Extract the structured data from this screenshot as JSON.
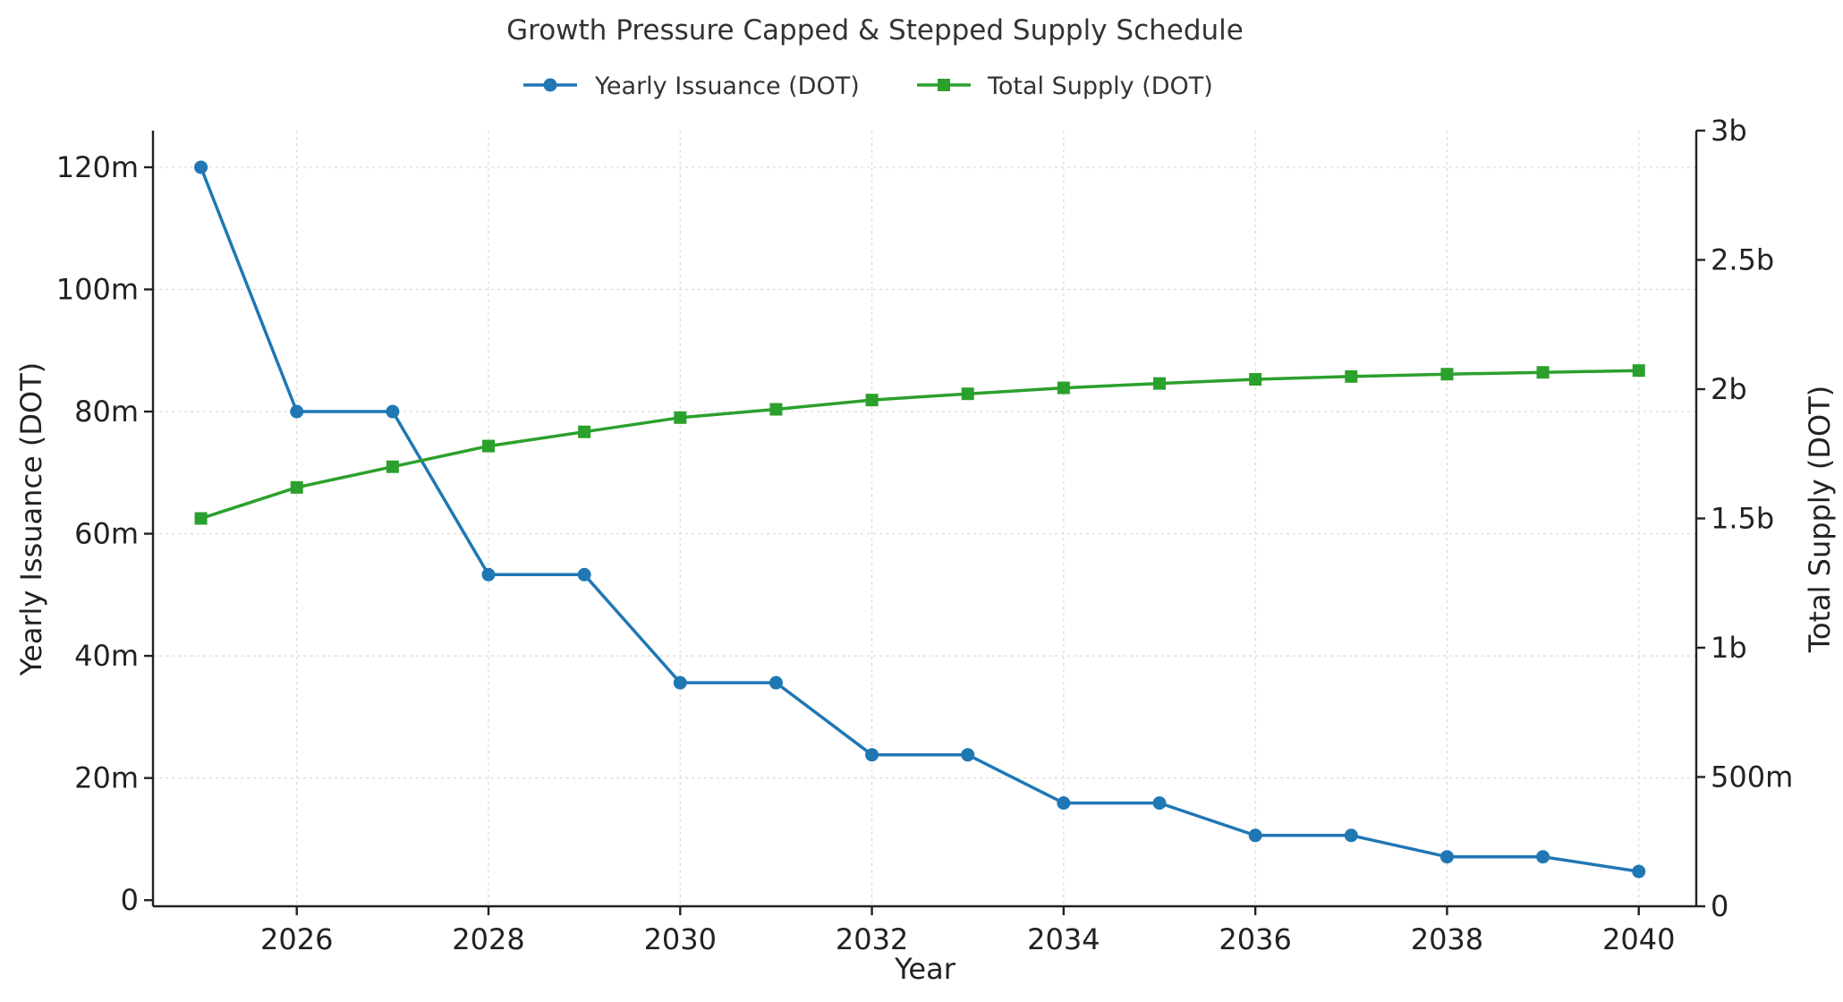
{
  "chart_data": {
    "type": "line",
    "title": "Growth Pressure Capped & Stepped Supply Schedule",
    "xlabel": "Year",
    "ylabel_left": "Yearly Issuance (DOT)",
    "ylabel_right": "Total Supply (DOT)",
    "x": [
      2025,
      2026,
      2027,
      2028,
      2029,
      2030,
      2031,
      2032,
      2033,
      2034,
      2035,
      2036,
      2037,
      2038,
      2039,
      2040
    ],
    "x_ticks": [
      2026,
      2028,
      2030,
      2032,
      2034,
      2036,
      2038,
      2040
    ],
    "x_tick_labels": [
      "2026",
      "2028",
      "2030",
      "2032",
      "2034",
      "2036",
      "2038",
      "2040"
    ],
    "xlim": [
      2024.5,
      2040.6
    ],
    "ylim_left": [
      -1000000,
      126000000
    ],
    "y_ticks_left": [
      0,
      20000000,
      40000000,
      60000000,
      80000000,
      100000000,
      120000000
    ],
    "y_tick_labels_left": [
      "0",
      "20m",
      "40m",
      "60m",
      "80m",
      "100m",
      "120m"
    ],
    "ylim_right": [
      0,
      3000000000
    ],
    "y_ticks_right": [
      0,
      500000000,
      1000000000,
      1500000000,
      2000000000,
      2500000000,
      3000000000
    ],
    "y_tick_labels_right": [
      "0",
      "500m",
      "1b",
      "1.5b",
      "2b",
      "2.5b",
      "3b"
    ],
    "grid": true,
    "legend_position": "top-center",
    "series": [
      {
        "name": "Yearly Issuance (DOT)",
        "axis": "left",
        "color": "#1f77b4",
        "marker": "circle",
        "values": [
          120000000,
          80000000,
          80000000,
          53300000,
          53300000,
          35600000,
          35600000,
          23800000,
          23800000,
          15900000,
          15900000,
          10600000,
          10600000,
          7100000,
          7100000,
          4700000
        ]
      },
      {
        "name": "Total Supply (DOT)",
        "axis": "right",
        "color": "#2ca02c",
        "marker": "square",
        "values": [
          1500000000,
          1620000000,
          1700000000,
          1780000000,
          1835000000,
          1890000000,
          1922000000,
          1958000000,
          1982000000,
          2005000000,
          2022000000,
          2038000000,
          2049000000,
          2058000000,
          2065000000,
          2072000000
        ]
      }
    ]
  }
}
